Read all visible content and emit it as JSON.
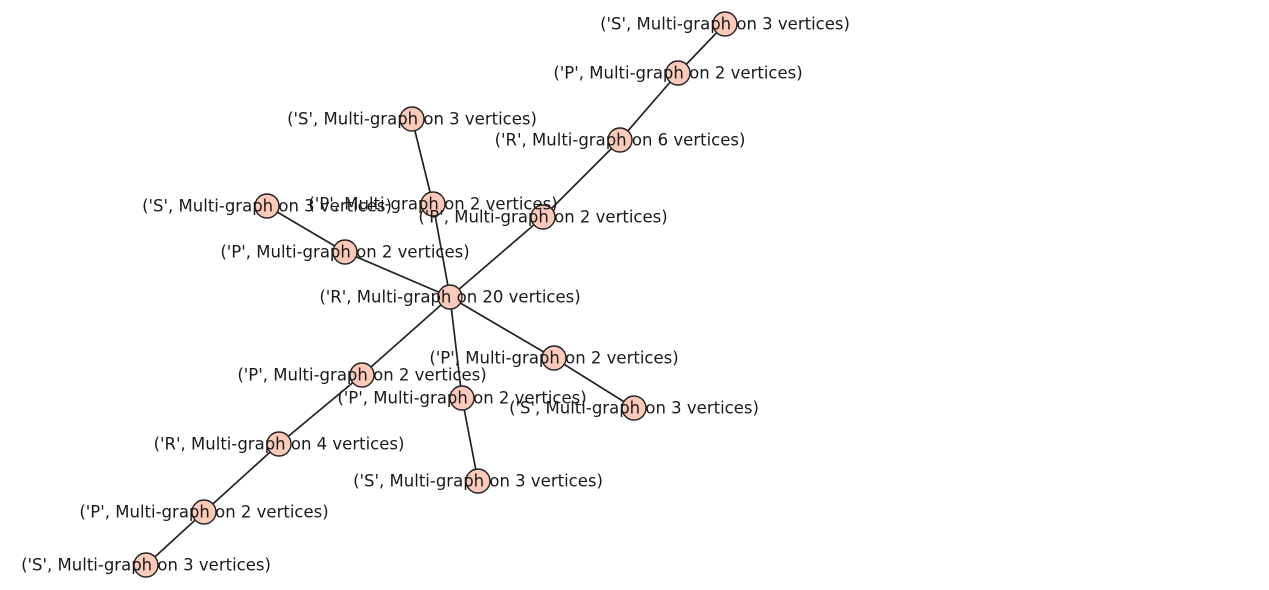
{
  "graph": {
    "node_fill": "#fccab9",
    "edge_color": "#222222",
    "nodes": [
      {
        "id": "n0",
        "label": "('R', Multi-graph on 20 vertices)"
      },
      {
        "id": "n1",
        "label": "('P', Multi-graph on 2 vertices)"
      },
      {
        "id": "n2",
        "label": "('R', Multi-graph on 6 vertices)"
      },
      {
        "id": "n3",
        "label": "('P', Multi-graph on 2 vertices)"
      },
      {
        "id": "n4",
        "label": "('S', Multi-graph on 3 vertices)"
      },
      {
        "id": "n5",
        "label": "('P', Multi-graph on 2 vertices)"
      },
      {
        "id": "n6",
        "label": "('S', Multi-graph on 3 vertices)"
      },
      {
        "id": "n7",
        "label": "('P', Multi-graph on 2 vertices)"
      },
      {
        "id": "n8",
        "label": "('S', Multi-graph on 3 vertices)"
      },
      {
        "id": "n9",
        "label": "('P', Multi-graph on 2 vertices)"
      },
      {
        "id": "n10",
        "label": "('S', Multi-graph on 3 vertices)"
      },
      {
        "id": "n11",
        "label": "('P', Multi-graph on 2 vertices)"
      },
      {
        "id": "n12",
        "label": "('S', Multi-graph on 3 vertices)"
      },
      {
        "id": "n13",
        "label": "('P', Multi-graph on 2 vertices)"
      },
      {
        "id": "n14",
        "label": "('R', Multi-graph on 4 vertices)"
      },
      {
        "id": "n15",
        "label": "('P', Multi-graph on 2 vertices)"
      },
      {
        "id": "n16",
        "label": "('S', Multi-graph on 3 vertices)"
      }
    ],
    "edges": [
      [
        "n0",
        "n1"
      ],
      [
        "n1",
        "n2"
      ],
      [
        "n2",
        "n3"
      ],
      [
        "n3",
        "n4"
      ],
      [
        "n0",
        "n5"
      ],
      [
        "n5",
        "n6"
      ],
      [
        "n0",
        "n7"
      ],
      [
        "n7",
        "n8"
      ],
      [
        "n0",
        "n9"
      ],
      [
        "n9",
        "n10"
      ],
      [
        "n0",
        "n11"
      ],
      [
        "n11",
        "n12"
      ],
      [
        "n0",
        "n13"
      ],
      [
        "n13",
        "n14"
      ],
      [
        "n14",
        "n15"
      ],
      [
        "n15",
        "n16"
      ]
    ]
  }
}
